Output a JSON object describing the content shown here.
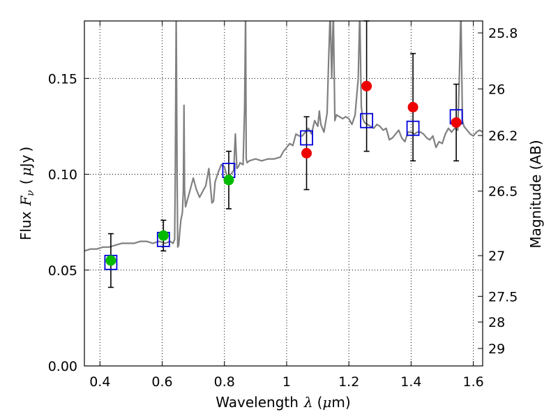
{
  "chart_data": {
    "type": "scatter",
    "xlabel": "Wavelength  λ (μm)",
    "ylabel": "Flux  F_ν  ( μJy )",
    "ylabel_parts": [
      "Flux",
      "F",
      "ν",
      "(",
      "μ",
      "Jy",
      ")"
    ],
    "xlabel_parts": [
      "Wavelength",
      "λ",
      "(",
      "μ",
      "m)"
    ],
    "y2label": "Magnitude (AB)",
    "xlim": [
      0.35,
      1.63
    ],
    "ylim": [
      0.0,
      0.18
    ],
    "grid": true,
    "x_ticks": [
      0.4,
      0.6,
      0.8,
      1.0,
      1.2,
      1.4,
      1.6
    ],
    "x_tick_labels": [
      "0.4",
      "0.6",
      "0.8",
      "1",
      "1.2",
      "1.4",
      "1.6"
    ],
    "y_ticks": [
      0.0,
      0.05,
      0.1,
      0.15
    ],
    "y_tick_labels": [
      "0.00",
      "0.05",
      "0.10",
      "0.15"
    ],
    "y2_ticks": [
      25.8,
      26,
      26.2,
      26.5,
      27,
      27.5,
      28,
      29
    ],
    "y2_tick_labels": [
      "25.8",
      "26",
      "26.2",
      "26.5",
      "27",
      "27.5",
      "28",
      "29"
    ],
    "colors": {
      "spectrum": "#808080",
      "model_box": "#0000dd",
      "green_points": "#00bb00",
      "red_points": "#ee0000",
      "errorbar": "#000000"
    },
    "spectrum": {
      "x": [
        0.35,
        0.37,
        0.39,
        0.41,
        0.43,
        0.45,
        0.47,
        0.49,
        0.51,
        0.53,
        0.55,
        0.57,
        0.59,
        0.61,
        0.625,
        0.635,
        0.64,
        0.642,
        0.645,
        0.648,
        0.65,
        0.653,
        0.657,
        0.66,
        0.665,
        0.668,
        0.67,
        0.672,
        0.675,
        0.68,
        0.69,
        0.7,
        0.71,
        0.72,
        0.73,
        0.74,
        0.75,
        0.76,
        0.765,
        0.77,
        0.78,
        0.79,
        0.8,
        0.81,
        0.82,
        0.83,
        0.835,
        0.84,
        0.845,
        0.85,
        0.86,
        0.865,
        0.868,
        0.87,
        0.873,
        0.88,
        0.9,
        0.92,
        0.94,
        0.96,
        0.98,
        0.99,
        1.0,
        1.01,
        1.02,
        1.03,
        1.04,
        1.05,
        1.06,
        1.07,
        1.08,
        1.09,
        1.1,
        1.105,
        1.11,
        1.12,
        1.13,
        1.135,
        1.14,
        1.145,
        1.15,
        1.155,
        1.16,
        1.17,
        1.18,
        1.19,
        1.2,
        1.21,
        1.22,
        1.23,
        1.235,
        1.24,
        1.245,
        1.25,
        1.26,
        1.27,
        1.28,
        1.29,
        1.3,
        1.31,
        1.32,
        1.33,
        1.34,
        1.35,
        1.36,
        1.37,
        1.38,
        1.39,
        1.4,
        1.41,
        1.42,
        1.43,
        1.44,
        1.45,
        1.46,
        1.47,
        1.48,
        1.49,
        1.5,
        1.51,
        1.52,
        1.53,
        1.54,
        1.55,
        1.555,
        1.56,
        1.565,
        1.57,
        1.58,
        1.59,
        1.6,
        1.61,
        1.62,
        1.63
      ],
      "y": [
        0.06,
        0.061,
        0.061,
        0.062,
        0.062,
        0.063,
        0.064,
        0.064,
        0.064,
        0.065,
        0.065,
        0.064,
        0.065,
        0.064,
        0.065,
        0.064,
        0.066,
        0.1,
        0.185,
        0.1,
        0.062,
        0.063,
        0.071,
        0.076,
        0.08,
        0.092,
        0.136,
        0.092,
        0.083,
        0.086,
        0.092,
        0.098,
        0.092,
        0.088,
        0.091,
        0.094,
        0.103,
        0.085,
        0.086,
        0.096,
        0.101,
        0.105,
        0.104,
        0.098,
        0.1,
        0.102,
        0.121,
        0.103,
        0.104,
        0.106,
        0.105,
        0.135,
        0.185,
        0.108,
        0.106,
        0.107,
        0.108,
        0.107,
        0.108,
        0.108,
        0.109,
        0.112,
        0.114,
        0.116,
        0.115,
        0.121,
        0.12,
        0.12,
        0.122,
        0.124,
        0.121,
        0.128,
        0.125,
        0.133,
        0.126,
        0.122,
        0.132,
        0.16,
        0.185,
        0.15,
        0.185,
        0.128,
        0.131,
        0.13,
        0.129,
        0.13,
        0.129,
        0.126,
        0.131,
        0.15,
        0.185,
        0.135,
        0.129,
        0.127,
        0.126,
        0.125,
        0.124,
        0.126,
        0.125,
        0.123,
        0.124,
        0.118,
        0.119,
        0.121,
        0.123,
        0.119,
        0.117,
        0.122,
        0.122,
        0.121,
        0.122,
        0.122,
        0.121,
        0.119,
        0.118,
        0.12,
        0.114,
        0.117,
        0.116,
        0.121,
        0.124,
        0.122,
        0.124,
        0.123,
        0.15,
        0.185,
        0.128,
        0.125,
        0.123,
        0.121,
        0.12,
        0.122,
        0.123,
        0.122
      ]
    },
    "model_boxes": {
      "x": [
        0.435,
        0.604,
        0.814,
        1.064,
        1.257,
        1.406,
        1.545
      ],
      "y": [
        0.054,
        0.066,
        0.102,
        0.119,
        0.128,
        0.124,
        0.13
      ]
    },
    "observed_green": {
      "x": [
        0.435,
        0.604,
        0.814
      ],
      "y": [
        0.055,
        0.068,
        0.097
      ],
      "yerr": [
        0.014,
        0.008,
        0.015
      ]
    },
    "observed_red": {
      "x": [
        1.064,
        1.257,
        1.406,
        1.545
      ],
      "y": [
        0.111,
        0.146,
        0.135,
        0.127
      ],
      "yerr": [
        0.019,
        0.034,
        0.028,
        0.02
      ]
    }
  }
}
